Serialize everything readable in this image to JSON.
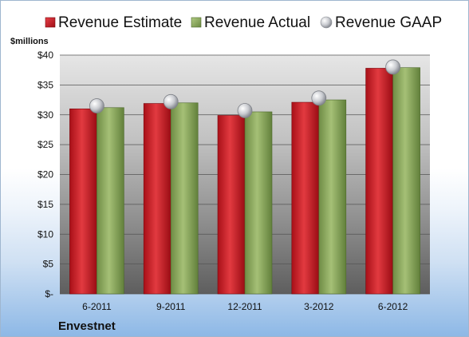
{
  "chart_data": {
    "type": "bar",
    "ylabel": "$millions",
    "ylim": [
      0,
      40
    ],
    "yticks": [
      {
        "value": 0,
        "label": "$-"
      },
      {
        "value": 5,
        "label": "$5"
      },
      {
        "value": 10,
        "label": "$10"
      },
      {
        "value": 15,
        "label": "$15"
      },
      {
        "value": 20,
        "label": "$20"
      },
      {
        "value": 25,
        "label": "$25"
      },
      {
        "value": 30,
        "label": "$30"
      },
      {
        "value": 35,
        "label": "$35"
      },
      {
        "value": 40,
        "label": "$40"
      }
    ],
    "categories": [
      "6-2011",
      "9-2011",
      "12-2011",
      "3-2012",
      "6-2012"
    ],
    "series": [
      {
        "name": "Revenue Estimate",
        "kind": "bar",
        "color": "#c8202a",
        "values": [
          31.0,
          31.9,
          29.9,
          32.1,
          37.8
        ]
      },
      {
        "name": "Revenue Actual",
        "kind": "bar",
        "color": "#8aa85a",
        "values": [
          31.2,
          32.0,
          30.5,
          32.5,
          37.9
        ]
      },
      {
        "name": "Revenue GAAP",
        "kind": "marker",
        "color": "#c9cbd0",
        "values": [
          31.5,
          32.2,
          30.7,
          32.8,
          38.0
        ]
      }
    ],
    "legend_position": "top",
    "grid": true,
    "company": "Envestnet"
  }
}
